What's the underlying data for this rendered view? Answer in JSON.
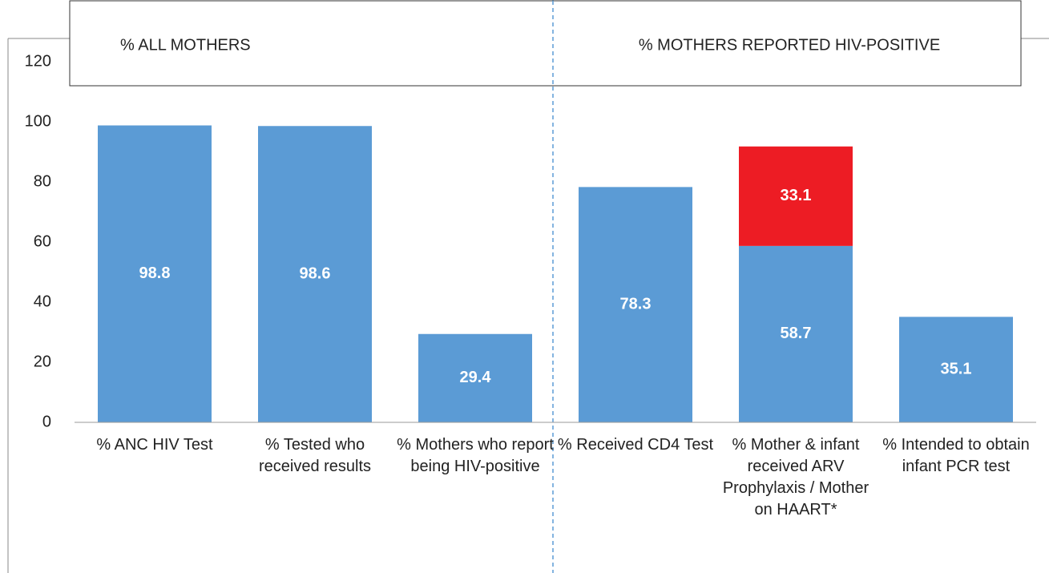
{
  "chart_data": {
    "type": "stacked_bar",
    "annotations": [
      "% ALL MOTHERS",
      "% MOTHERS REPORTED HIV-POSITIVE"
    ],
    "categories": [
      "% ANC HIV Test",
      "% Tested who received results",
      "% Mothers who report being HIV-positive",
      "% Received CD4 Test",
      "% Mother & infant received ARV Prophylaxis / Mother on HAART*",
      "% Intended to obtain infant PCR test"
    ],
    "series": [
      {
        "color": "#5b9bd5",
        "values": [
          98.8,
          98.6,
          29.4,
          78.3,
          58.7,
          35.1
        ]
      },
      {
        "color": "#ed1c24",
        "values": [
          null,
          null,
          null,
          null,
          33.1,
          null
        ]
      }
    ],
    "ylim": [
      0,
      120
    ],
    "yticks": [
      0,
      20,
      40,
      60,
      80,
      100,
      120
    ],
    "grid": false
  }
}
